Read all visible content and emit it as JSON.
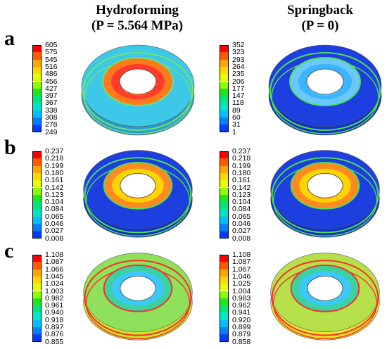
{
  "columns": {
    "left": {
      "line1": "Hydroforming",
      "line2": "(P = 5.564 MPa)"
    },
    "right": {
      "line1": "Springback",
      "line2": "(P = 0)"
    }
  },
  "rows": [
    {
      "letter": "a",
      "legends": [
        [
          "605",
          "575",
          "545",
          "516",
          "486",
          "456",
          "427",
          "397",
          "367",
          "338",
          "308",
          "278",
          "249"
        ],
        [
          "352",
          "323",
          "293",
          "264",
          "235",
          "206",
          "177",
          "147",
          "118",
          "89",
          "60",
          "31",
          "1"
        ]
      ]
    },
    {
      "letter": "b",
      "legends": [
        [
          "0.237",
          "0.218",
          "0.199",
          "0.180",
          "0.161",
          "0.142",
          "0.123",
          "0.104",
          "0.084",
          "0.065",
          "0.046",
          "0.027",
          "0.008"
        ],
        [
          "0.237",
          "0.218",
          "0.199",
          "0.180",
          "0.161",
          "0.142",
          "0.123",
          "0.104",
          "0.084",
          "0.065",
          "0.046",
          "0.027",
          "0.008"
        ]
      ]
    },
    {
      "letter": "c",
      "legends": [
        [
          "1.108",
          "1.087",
          "1.066",
          "1.045",
          "1.024",
          "1.003",
          "0.982",
          "0.961",
          "0.940",
          "0.918",
          "0.897",
          "0.876",
          "0.855"
        ],
        [
          "1.108",
          "1.087",
          "1.067",
          "1.046",
          "1.025",
          "1.004",
          "0.983",
          "0.962",
          "0.941",
          "0.920",
          "0.899",
          "0.879",
          "0.858"
        ]
      ]
    }
  ],
  "colormap": [
    "#ff0000",
    "#ff5a00",
    "#ffa500",
    "#ffd700",
    "#e6ff00",
    "#8cff00",
    "#1ee61e",
    "#00e678",
    "#00e6c8",
    "#00beff",
    "#0082ff",
    "#003cff",
    "#0000ff"
  ],
  "tori": [
    {
      "base": "#3cc8e6",
      "outer": "#2a9bd0",
      "inner": "#ff7a1a",
      "ring": "#6fe36f",
      "core": "#ff3b2b"
    },
    {
      "base": "#1e3fe0",
      "outer": "#1230c8",
      "inner": "#6ac8ff",
      "ring": "#4ee04e",
      "core": "#3cb4ff"
    },
    {
      "base": "#1e3fe0",
      "outer": "#1230c8",
      "inner": "#ff8a22",
      "ring": "#4ee04e",
      "core": "#ffd400"
    },
    {
      "base": "#1e3fe0",
      "outer": "#1230c8",
      "inner": "#ff8a22",
      "ring": "#4ee04e",
      "core": "#ffd400"
    },
    {
      "base": "#8fe05a",
      "outer": "#c8e62a",
      "inner": "#3cd2a0",
      "ring": "#ff2a2a",
      "core": "#3cc8ff"
    },
    {
      "base": "#b5e04a",
      "outer": "#e6e62a",
      "inner": "#3cd2a0",
      "ring": "#ff2a2a",
      "core": "#3cc8ff"
    }
  ]
}
